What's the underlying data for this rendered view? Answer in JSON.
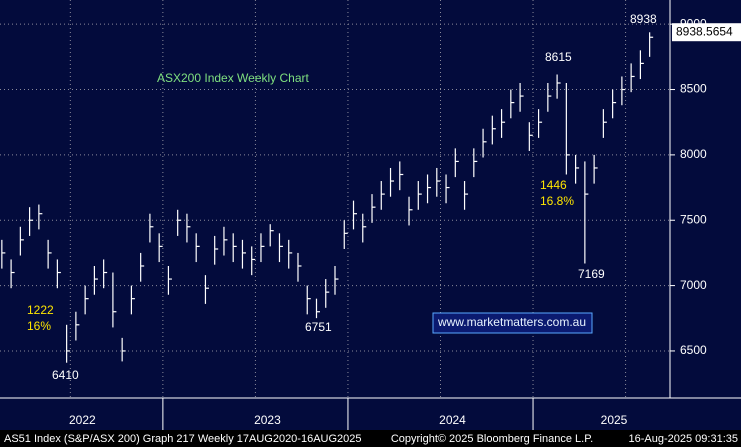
{
  "chart_data": {
    "type": "ohlc",
    "title": "ASX200 Index Weekly Chart",
    "x": [
      2022.13,
      2022.18,
      2022.23,
      2022.28,
      2022.33,
      2022.38,
      2022.43,
      2022.48,
      2022.53,
      2022.58,
      2022.63,
      2022.68,
      2022.73,
      2022.78,
      2022.83,
      2022.88,
      2022.93,
      2022.98,
      2023.03,
      2023.08,
      2023.13,
      2023.18,
      2023.23,
      2023.28,
      2023.33,
      2023.38,
      2023.43,
      2023.48,
      2023.53,
      2023.58,
      2023.63,
      2023.68,
      2023.73,
      2023.78,
      2023.83,
      2023.88,
      2023.93,
      2023.98,
      2024.03,
      2024.08,
      2024.13,
      2024.18,
      2024.23,
      2024.28,
      2024.33,
      2024.38,
      2024.43,
      2024.48,
      2024.53,
      2024.58,
      2024.63,
      2024.68,
      2024.73,
      2024.78,
      2024.83,
      2024.88,
      2024.93,
      2024.98,
      2025.03,
      2025.08,
      2025.13,
      2025.18,
      2025.23,
      2025.28,
      2025.33,
      2025.38,
      2025.43,
      2025.48,
      2025.53,
      2025.58,
      2025.63
    ],
    "high": [
      7350,
      7200,
      7450,
      7600,
      7620,
      7350,
      7200,
      6700,
      6800,
      7000,
      7150,
      7200,
      7100,
      6600,
      7000,
      7250,
      7550,
      7400,
      7150,
      7580,
      7550,
      7400,
      7080,
      7380,
      7450,
      7400,
      7350,
      7300,
      7400,
      7470,
      7400,
      7350,
      7250,
      7000,
      6900,
      7050,
      7150,
      7500,
      7650,
      7550,
      7700,
      7800,
      7900,
      7950,
      7680,
      7800,
      7850,
      7900,
      7850,
      8050,
      7800,
      8050,
      8200,
      8300,
      8350,
      8500,
      8550,
      8250,
      8350,
      8550,
      8615,
      8550,
      8000,
      7950,
      8000,
      8350,
      8500,
      8600,
      8700,
      8800,
      8938
    ],
    "low": [
      7130,
      6980,
      7230,
      7380,
      7430,
      7130,
      6980,
      6410,
      6580,
      6780,
      6930,
      6980,
      6680,
      6420,
      6780,
      7030,
      7330,
      7180,
      6930,
      7380,
      7330,
      7180,
      6860,
      7160,
      7230,
      7180,
      7130,
      7080,
      7180,
      7300,
      7180,
      7130,
      7030,
      6780,
      6751,
      6830,
      6930,
      7280,
      7430,
      7330,
      7480,
      7580,
      7680,
      7730,
      7460,
      7580,
      7630,
      7680,
      7630,
      7830,
      7580,
      7830,
      7980,
      8080,
      8130,
      8280,
      8330,
      8030,
      8130,
      8330,
      8430,
      7850,
      7780,
      7169,
      7780,
      8130,
      8280,
      8380,
      8480,
      8580,
      8750
    ],
    "close": [
      7250,
      7100,
      7350,
      7500,
      7550,
      7250,
      7100,
      6500,
      6700,
      6900,
      7050,
      7100,
      6800,
      6500,
      6900,
      7150,
      7450,
      7300,
      7050,
      7500,
      7450,
      7300,
      6980,
      7280,
      7350,
      7300,
      7250,
      7200,
      7300,
      7420,
      7300,
      7250,
      7150,
      6900,
      6800,
      6950,
      7050,
      7400,
      7550,
      7450,
      7600,
      7700,
      7800,
      7850,
      7580,
      7700,
      7750,
      7800,
      7750,
      7950,
      7700,
      7950,
      8100,
      8200,
      8250,
      8400,
      8450,
      8150,
      8250,
      8450,
      8550,
      8000,
      7900,
      7700,
      7900,
      8250,
      8400,
      8500,
      8600,
      8700,
      8900
    ],
    "color": "#ffffff",
    "xlim": [
      2022.12,
      2025.74
    ],
    "xticks": [
      {
        "value": 2022.5,
        "label": "2022"
      },
      {
        "value": 2023.5,
        "label": "2023"
      },
      {
        "value": 2024.5,
        "label": "2024"
      },
      {
        "value": 2025.5,
        "label": "2025"
      }
    ],
    "xminor": [
      2023,
      2024,
      2025
    ],
    "ylim": [
      6140,
      9185
    ],
    "yticks": [
      6500,
      7000,
      7500,
      8000,
      8500,
      9000
    ],
    "grid": true,
    "last_price": 8938.5654,
    "annotations": [
      "8938",
      "8615",
      "1446",
      "16.8%",
      "7169",
      "6751",
      "1222",
      "16%",
      "6410"
    ],
    "watermark": "www.marketmatters.com.au",
    "footer": {
      "left": "AS51 Index (S&P/ASX 200) Graph 217  Weekly 17AUG2020-16AUG2025",
      "center": "Copyright© 2025 Bloomberg Finance L.P.",
      "right": "16-Aug-2025 09:31:35"
    }
  }
}
